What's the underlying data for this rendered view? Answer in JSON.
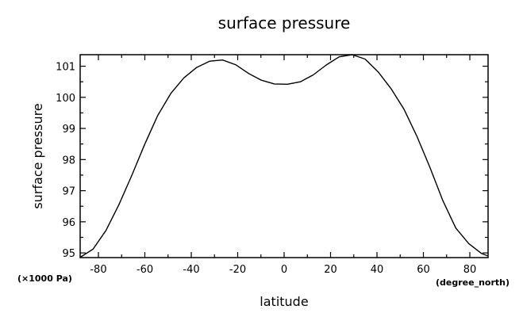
{
  "chart_data": {
    "type": "line",
    "title": "surface pressure",
    "xlabel": "latitude",
    "ylabel": "surface pressure",
    "x_unit": "(degree_north)",
    "y_unit": "(×1000 Pa)",
    "xlim": [
      -87.86,
      87.86
    ],
    "ylim": [
      94.85,
      101.37
    ],
    "x_ticks": [
      -80,
      -60,
      -40,
      -20,
      0,
      20,
      40,
      60,
      80
    ],
    "x_tick_labels": [
      "-80",
      "-60",
      "-40",
      "-20",
      "0",
      "20",
      "40",
      "60",
      "80"
    ],
    "y_ticks": [
      95,
      96,
      97,
      98,
      99,
      100,
      101
    ],
    "y_tick_labels": [
      "95",
      "96",
      "97",
      "98",
      "99",
      "100",
      "101"
    ],
    "grid": false,
    "x": [
      -87.86,
      -82.31,
      -76.74,
      -71.16,
      -65.58,
      -60.0,
      -54.42,
      -48.84,
      -43.26,
      -37.67,
      -32.09,
      -26.51,
      -20.93,
      -15.35,
      -9.77,
      -4.19,
      1.4,
      6.98,
      12.56,
      18.14,
      23.72,
      29.3,
      34.88,
      40.47,
      46.05,
      51.63,
      57.21,
      62.79,
      68.37,
      73.95,
      79.53,
      85.1,
      87.86
    ],
    "values": [
      94.86,
      95.12,
      95.72,
      96.55,
      97.5,
      98.5,
      99.42,
      100.12,
      100.62,
      100.96,
      101.16,
      101.2,
      101.05,
      100.77,
      100.55,
      100.43,
      100.42,
      100.5,
      100.72,
      101.04,
      101.3,
      101.37,
      101.23,
      100.82,
      100.28,
      99.62,
      98.75,
      97.75,
      96.68,
      95.8,
      95.3,
      94.98,
      94.9
    ],
    "series": [
      {
        "values": "values"
      }
    ]
  }
}
